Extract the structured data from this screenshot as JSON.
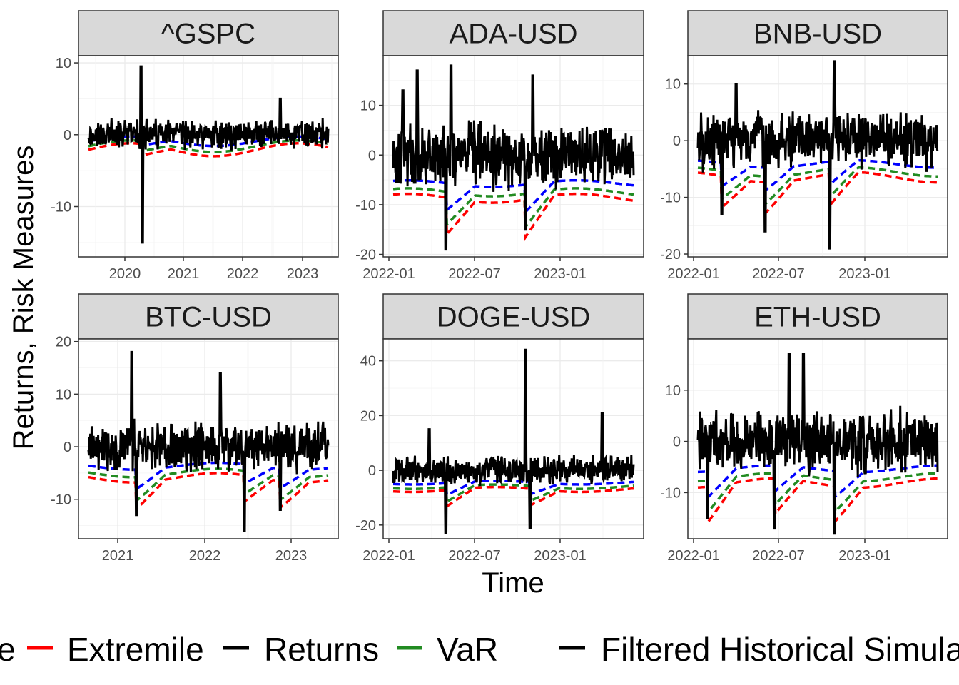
{
  "axis": {
    "xlabel": "Time",
    "ylabel": "Returns, Risk Measures"
  },
  "legend": {
    "items": [
      {
        "label": "e",
        "color": "#0000ff"
      },
      {
        "label": "Extremile",
        "color": "#ff0000"
      },
      {
        "label": "Returns",
        "color": "#000000"
      },
      {
        "label": "VaR",
        "color": "#228b22"
      },
      {
        "label": "Filtered Historical Simula",
        "color": "#000000"
      }
    ]
  },
  "chart_data": [
    {
      "type": "line",
      "title": "^GSPC",
      "xticks": [
        "2020",
        "2021",
        "2022",
        "2023"
      ],
      "ylim": [
        -17,
        11
      ],
      "yticks": [
        10,
        0,
        -10
      ],
      "grid": true
    },
    {
      "type": "line",
      "title": "ADA-USD",
      "xticks": [
        "2022-01",
        "2022-07",
        "2023-01"
      ],
      "ylim": [
        -20.5,
        20
      ],
      "yticks": [
        10,
        0,
        -10,
        -20
      ],
      "grid": true
    },
    {
      "type": "line",
      "title": "BNB-USD",
      "xticks": [
        "2022-01",
        "2022-07",
        "2023-01"
      ],
      "ylim": [
        -20.5,
        15
      ],
      "yticks": [
        10,
        0,
        -10,
        -20
      ],
      "grid": true
    },
    {
      "type": "line",
      "title": "BTC-USD",
      "xticks": [
        "2021",
        "2022",
        "2023"
      ],
      "ylim": [
        -17.5,
        20.5
      ],
      "yticks": [
        20,
        10,
        0,
        -10
      ],
      "grid": true
    },
    {
      "type": "line",
      "title": "DOGE-USD",
      "xticks": [
        "2022-01",
        "2022-07",
        "2023-01"
      ],
      "ylim": [
        -25,
        48
      ],
      "yticks": [
        40,
        20,
        0,
        -20
      ],
      "grid": true
    },
    {
      "type": "line",
      "title": "ETH-USD",
      "xticks": [
        "2022-01",
        "2022-07",
        "2023-01"
      ],
      "ylim": [
        -19,
        20
      ],
      "yticks": [
        10,
        0,
        -10
      ],
      "grid": true
    }
  ]
}
